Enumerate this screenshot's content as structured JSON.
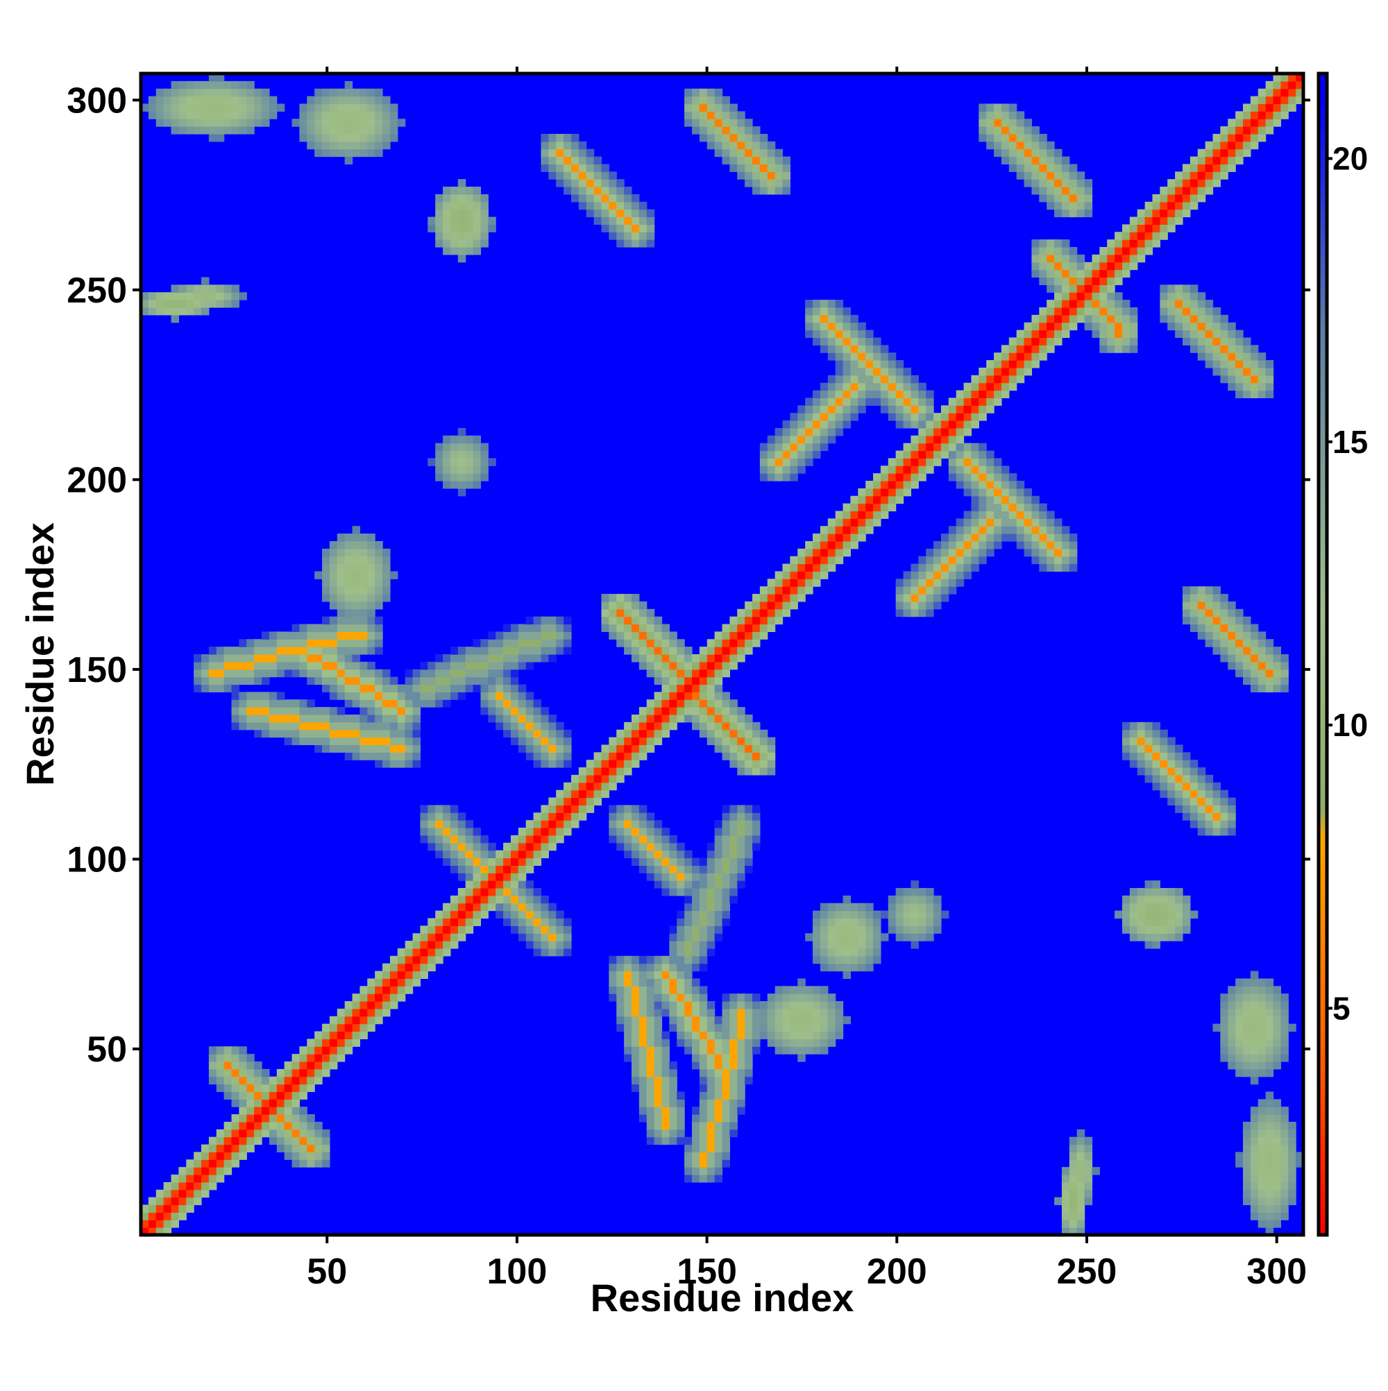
{
  "chart_data": {
    "type": "heatmap",
    "title": "",
    "xlabel": "Residue index",
    "ylabel": "Residue index",
    "xlim": [
      1,
      307
    ],
    "ylim": [
      1,
      307
    ],
    "x_ticks": [
      50,
      100,
      150,
      200,
      250,
      300
    ],
    "y_ticks": [
      50,
      100,
      150,
      200,
      250,
      300
    ],
    "x_tick_labels": [
      "50",
      "100",
      "150",
      "200",
      "250",
      "300"
    ],
    "y_tick_labels": [
      "50",
      "100",
      "150",
      "200",
      "250",
      "300"
    ],
    "colorbar": {
      "range": [
        1,
        21.5
      ],
      "ticks": [
        5,
        10,
        15,
        20
      ],
      "tick_labels": [
        "5",
        "10",
        "15",
        "20"
      ],
      "color_stops": [
        {
          "value": 1,
          "color": "#ff0000"
        },
        {
          "value": 4,
          "color": "#ff5a00"
        },
        {
          "value": 8,
          "color": "#ffa500"
        },
        {
          "value": 8.5,
          "color": "#8fae6a"
        },
        {
          "value": 12,
          "color": "#9fbf8a"
        },
        {
          "value": 17,
          "color": "#5a7fa8"
        },
        {
          "value": 21,
          "color": "#0000ff"
        }
      ]
    },
    "background_value": 21,
    "background_color": "#0000ff",
    "diagonal": {
      "value_on": 1,
      "band_widths": [
        {
          "d": 0,
          "v": 1
        },
        {
          "d": 1,
          "v": 3
        },
        {
          "d": 2,
          "v": 5.5
        },
        {
          "d": 3,
          "v": 9
        },
        {
          "d": 5,
          "v": 12
        }
      ]
    },
    "contact_segments": [
      {
        "kind": "anti",
        "from": [
          24,
          45
        ],
        "to": [
          46,
          22
        ],
        "value": 6
      },
      {
        "kind": "anti",
        "from": [
          128,
          166
        ],
        "to": [
          163,
          128
        ],
        "value": 5
      },
      {
        "kind": "anti",
        "from": [
          242,
          260
        ],
        "to": [
          260,
          240
        ],
        "value": 6
      },
      {
        "kind": "anti",
        "from": [
          182,
          243
        ],
        "to": [
          205,
          219
        ],
        "value": 7
      },
      {
        "kind": "anti",
        "from": [
          219,
          205
        ],
        "to": [
          243,
          182
        ],
        "value": 7
      },
      {
        "kind": "anti",
        "from": [
          111,
          287
        ],
        "to": [
          132,
          266
        ],
        "value": 7
      },
      {
        "kind": "anti",
        "from": [
          266,
          132
        ],
        "to": [
          287,
          111
        ],
        "value": 7
      },
      {
        "kind": "anti",
        "from": [
          149,
          300
        ],
        "to": [
          168,
          281
        ],
        "value": 6
      },
      {
        "kind": "anti",
        "from": [
          281,
          168
        ],
        "to": [
          300,
          149
        ],
        "value": 6
      },
      {
        "kind": "anti",
        "from": [
          228,
          295
        ],
        "to": [
          248,
          275
        ],
        "value": 6
      },
      {
        "kind": "anti",
        "from": [
          275,
          248
        ],
        "to": [
          295,
          228
        ],
        "value": 6
      },
      {
        "kind": "anti",
        "from": [
          80,
          110
        ],
        "to": [
          110,
          80
        ],
        "value": 8
      },
      {
        "kind": "parallel",
        "from": [
          70,
          140
        ],
        "to": [
          45,
          155
        ],
        "value": 7
      },
      {
        "kind": "parallel",
        "from": [
          140,
          70
        ],
        "to": [
          155,
          45
        ],
        "value": 7
      },
      {
        "kind": "parallel",
        "from": [
          20,
          150
        ],
        "to": [
          60,
          160
        ],
        "value": 8
      },
      {
        "kind": "parallel",
        "from": [
          150,
          20
        ],
        "to": [
          160,
          60
        ],
        "value": 8
      },
      {
        "kind": "parallel",
        "from": [
          170,
          205
        ],
        "to": [
          190,
          225
        ],
        "value": 7
      },
      {
        "kind": "parallel",
        "from": [
          205,
          170
        ],
        "to": [
          225,
          190
        ],
        "value": 7
      },
      {
        "kind": "parallel",
        "from": [
          110,
          130
        ],
        "to": [
          95,
          145
        ],
        "value": 8
      },
      {
        "kind": "parallel",
        "from": [
          130,
          110
        ],
        "to": [
          145,
          95
        ],
        "value": 8
      },
      {
        "kind": "parallel",
        "from": [
          130,
          70
        ],
        "to": [
          140,
          30
        ],
        "value": 8
      },
      {
        "kind": "parallel",
        "from": [
          70,
          130
        ],
        "to": [
          30,
          140
        ],
        "value": 8
      },
      {
        "kind": "parallel",
        "from": [
          160,
          110
        ],
        "to": [
          145,
          75
        ],
        "value": 9
      },
      {
        "kind": "parallel",
        "from": [
          110,
          160
        ],
        "to": [
          75,
          145
        ],
        "value": 9
      }
    ],
    "contact_patches": [
      {
        "x": 58,
        "y": 175,
        "rx": 10,
        "ry": 12,
        "value": 11
      },
      {
        "x": 175,
        "y": 58,
        "rx": 12,
        "ry": 10,
        "value": 11
      },
      {
        "x": 10,
        "y": 248,
        "rx": 10,
        "ry": 4,
        "value": 10
      },
      {
        "x": 248,
        "y": 10,
        "rx": 4,
        "ry": 10,
        "value": 10
      },
      {
        "x": 20,
        "y": 300,
        "rx": 18,
        "ry": 7,
        "value": 11
      },
      {
        "x": 300,
        "y": 20,
        "rx": 7,
        "ry": 18,
        "value": 11
      },
      {
        "x": 55,
        "y": 295,
        "rx": 14,
        "ry": 9,
        "value": 11
      },
      {
        "x": 295,
        "y": 55,
        "rx": 9,
        "ry": 14,
        "value": 11
      },
      {
        "x": 85,
        "y": 268,
        "rx": 8,
        "ry": 8,
        "value": 11
      },
      {
        "x": 268,
        "y": 85,
        "rx": 8,
        "ry": 8,
        "value": 11
      },
      {
        "x": 85,
        "y": 205,
        "rx": 7,
        "ry": 7,
        "value": 12
      },
      {
        "x": 205,
        "y": 85,
        "rx": 7,
        "ry": 7,
        "value": 12
      },
      {
        "x": 250,
        "y": 18,
        "rx": 4,
        "ry": 10,
        "value": 11
      },
      {
        "x": 18,
        "y": 250,
        "rx": 10,
        "ry": 4,
        "value": 11
      },
      {
        "x": 299,
        "y": 22,
        "rx": 8,
        "ry": 12,
        "value": 11
      },
      {
        "x": 22,
        "y": 299,
        "rx": 12,
        "ry": 8,
        "value": 11
      },
      {
        "x": 270,
        "y": 85,
        "rx": 9,
        "ry": 8,
        "value": 10
      },
      {
        "x": 85,
        "y": 270,
        "rx": 8,
        "ry": 9,
        "value": 10
      },
      {
        "x": 188,
        "y": 80,
        "rx": 10,
        "ry": 10,
        "value": 11
      }
    ]
  }
}
